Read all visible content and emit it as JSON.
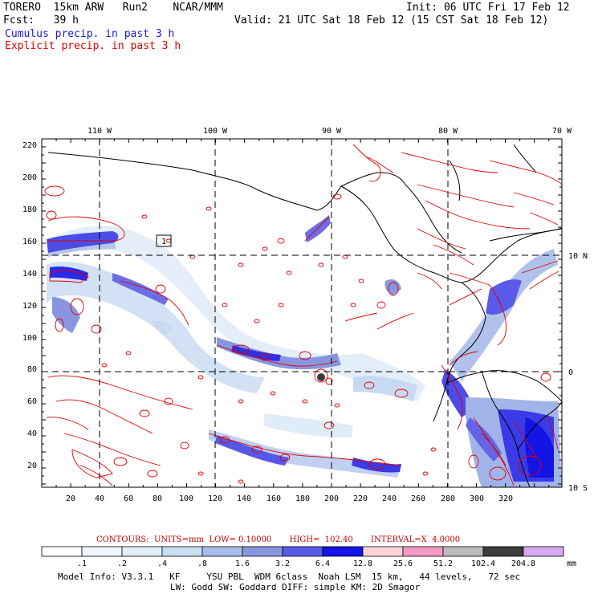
{
  "header": {
    "line1_left": "TORERO  15km ARW   Run2    NCAR/MMM",
    "line1_right": "Init: 06 UTC Fri 17 Feb 12",
    "line2_left": "Fcst:   39 h",
    "line2_right": "Valid: 21 UTC Sat 18 Feb 12 (15 CST Sat 18 Feb 12)",
    "legend1": "Cumulus precip. in past 3 h",
    "legend2": "Explicit precip. in past 3 h",
    "legend1_color": "#1a1ad0",
    "legend2_color": "#e00000"
  },
  "map": {
    "lon_labels": [
      "110 W",
      "100 W",
      "90 W",
      "80 W",
      "70 W"
    ],
    "lat_labels": [
      "10 N",
      "0",
      "10 S"
    ],
    "y_ticks": [
      "20",
      "40",
      "60",
      "80",
      "100",
      "120",
      "140",
      "160",
      "180",
      "200",
      "220"
    ],
    "x_ticks": [
      "20",
      "40",
      "60",
      "80",
      "100",
      "120",
      "140",
      "160",
      "180",
      "200",
      "220",
      "240",
      "260",
      "280",
      "300",
      "320"
    ],
    "box_label": "1"
  },
  "contours": {
    "text": "CONTOURS:  UNITS=mm  LOW= 0.10000       HIGH=  102.40       INTERVAL=X  4.0000"
  },
  "colorbar": {
    "colors": [
      "#ffffff",
      "#f0f6fb",
      "#e0eef8",
      "#c8def2",
      "#a8bde8",
      "#8896e0",
      "#5a5ae8",
      "#1414e6",
      "#fbd5d5",
      "#f59ac4",
      "#bcbcbc",
      "#3c3c3c",
      "#d8a8f0"
    ],
    "labels": [
      ".1",
      ".2",
      ".4",
      ".8",
      "1.6",
      "3.2",
      "6.4",
      "12.8",
      "25.6",
      "51.2",
      "102.4",
      "204.8"
    ],
    "unit": "mm"
  },
  "footer": {
    "line1": "Model Info: V3.3.1   KF     YSU PBL  WDM 6class  Noah LSM  15 km,   44 levels,   72 sec",
    "line2": "LW: Godd SW: Goddard DIFF: simple KM: 2D Smagor"
  }
}
